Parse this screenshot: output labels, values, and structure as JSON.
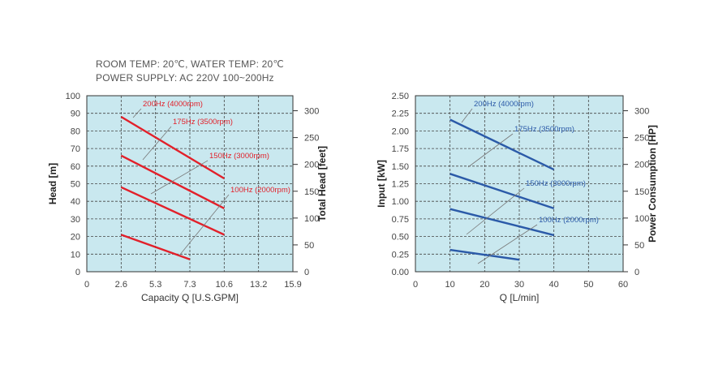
{
  "conditions": {
    "line1": "ROOM TEMP: 20℃, WATER TEMP: 20℃",
    "line2": "POWER SUPPLY: AC 220V 100~200Hz"
  },
  "colors": {
    "plot_bg": "#c9e8ef",
    "grid": "#444444",
    "head_series": "#e2202a",
    "power_series": "#2b5aa8"
  },
  "chart_data": [
    {
      "type": "line",
      "title": "",
      "xlabel": "Capacity Q [U.S.GPM]",
      "ylabel": "Head [m]",
      "y2label": "Total Head [feet]",
      "x_ticks": [
        "0",
        "2.6",
        "5.3",
        "7.3",
        "10.6",
        "13.2",
        "15.9"
      ],
      "xlim": [
        0,
        15.9
      ],
      "y_ticks": [
        "0",
        "10",
        "20",
        "30",
        "40",
        "50",
        "60",
        "70",
        "80",
        "90",
        "100"
      ],
      "ylim": [
        0,
        100
      ],
      "y2_ticks": [
        "0",
        "50",
        "100",
        "150",
        "200",
        "250",
        "300"
      ],
      "y2lim": [
        0,
        328
      ],
      "grid": true,
      "series": [
        {
          "name": "200Hz (4000rpm)",
          "x": [
            2.6,
            10.6
          ],
          "y": [
            88,
            53
          ]
        },
        {
          "name": "175Hz (3500rpm)",
          "x": [
            2.6,
            10.6
          ],
          "y": [
            66,
            36
          ]
        },
        {
          "name": "150Hz (3000rpm)",
          "x": [
            2.6,
            10.6
          ],
          "y": [
            48,
            21
          ]
        },
        {
          "name": "100Hz (2000rpm)",
          "x": [
            2.6,
            7.3
          ],
          "y": [
            21,
            7
          ]
        }
      ]
    },
    {
      "type": "line",
      "title": "",
      "xlabel": "Q [L/min]",
      "ylabel": "Input [kW]",
      "y2label": "Power Consumption [HP]",
      "x_ticks": [
        "0",
        "10",
        "20",
        "30",
        "40",
        "50",
        "60"
      ],
      "xlim": [
        0,
        60
      ],
      "y_ticks": [
        "0.00",
        "0.25",
        "0.50",
        "0.75",
        "1.00",
        "1.25",
        "1.50",
        "1.75",
        "2.00",
        "2.25",
        "2.50"
      ],
      "ylim": [
        0,
        2.5
      ],
      "y2_ticks": [
        "0",
        "50",
        "100",
        "150",
        "200",
        "250",
        "300"
      ],
      "y2lim": [
        0,
        328
      ],
      "grid": true,
      "series": [
        {
          "name": "200Hz (4000rpm)",
          "x": [
            10,
            40
          ],
          "y": [
            2.16,
            1.45
          ]
        },
        {
          "name": "175Hz (3500rpm)",
          "x": [
            10,
            40
          ],
          "y": [
            1.39,
            0.9
          ]
        },
        {
          "name": "150Hz (3000rpm)",
          "x": [
            10,
            40
          ],
          "y": [
            0.89,
            0.52
          ]
        },
        {
          "name": "100Hz (2000rpm)",
          "x": [
            10,
            30
          ],
          "y": [
            0.31,
            0.17
          ]
        }
      ]
    }
  ]
}
